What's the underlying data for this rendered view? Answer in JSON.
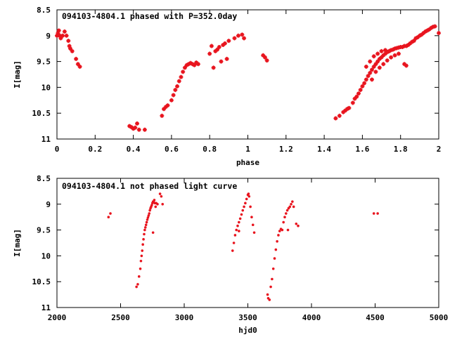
{
  "chart_data": [
    {
      "type": "scatter",
      "title": "094103-4804.1 phased with P=352.0day",
      "xlabel": "phase",
      "ylabel": "I[mag]",
      "xlim": [
        0,
        2
      ],
      "ylim": [
        8.5,
        11
      ],
      "y_inverted": true,
      "x_ticks": [
        "0",
        "0.2",
        "0.4",
        "0.6",
        "0.8",
        "1",
        "1.2",
        "1.4",
        "1.6",
        "1.8",
        "2"
      ],
      "y_ticks": [
        "8.5",
        "9",
        "9.5",
        "10",
        "10.5",
        "11"
      ],
      "grid": false,
      "marker_color": "#e8141e",
      "series": [
        {
          "x": [
            0.0,
            0.005,
            0.01,
            0.015,
            0.02,
            0.03,
            0.04,
            0.05,
            0.06,
            0.065,
            0.07,
            0.08,
            0.1,
            0.11,
            0.12,
            0.38,
            0.39,
            0.4,
            0.41,
            0.42,
            0.43,
            0.46,
            0.55,
            0.56,
            0.57,
            0.58,
            0.6,
            0.61,
            0.62,
            0.63,
            0.64,
            0.65,
            0.66,
            0.67,
            0.68,
            0.69,
            0.7,
            0.71,
            0.72,
            0.73,
            0.74,
            0.8,
            0.81,
            0.82,
            0.83,
            0.84,
            0.85,
            0.86,
            0.87,
            0.88,
            0.89,
            0.9,
            0.93,
            0.95,
            0.97,
            0.98,
            1.08,
            1.09,
            1.1
          ],
          "y": [
            9.0,
            8.95,
            8.9,
            9.0,
            9.05,
            9.0,
            8.92,
            9.0,
            9.1,
            9.2,
            9.25,
            9.3,
            9.45,
            9.55,
            9.6,
            10.75,
            10.77,
            10.8,
            10.78,
            10.7,
            10.82,
            10.82,
            10.55,
            10.42,
            10.38,
            10.35,
            10.25,
            10.15,
            10.05,
            9.98,
            9.88,
            9.8,
            9.7,
            9.62,
            9.57,
            9.55,
            9.53,
            9.55,
            9.57,
            9.52,
            9.55,
            9.35,
            9.2,
            9.62,
            9.3,
            9.27,
            9.22,
            9.5,
            9.18,
            9.15,
            9.45,
            9.1,
            9.05,
            9.0,
            8.98,
            9.05,
            9.38,
            9.42,
            9.48
          ]
        },
        {
          "x": [
            1.46,
            1.48,
            1.5,
            1.51,
            1.52,
            1.53,
            1.55,
            1.56,
            1.57,
            1.58,
            1.59,
            1.6,
            1.61,
            1.62,
            1.63,
            1.64,
            1.65,
            1.66,
            1.67,
            1.68,
            1.69,
            1.7,
            1.71,
            1.72,
            1.73,
            1.74,
            1.75,
            1.76,
            1.77,
            1.78,
            1.79,
            1.8,
            1.81,
            1.82,
            1.83,
            1.84,
            1.85,
            1.86,
            1.87,
            1.88,
            1.89,
            1.9,
            1.91,
            1.92,
            1.93,
            1.94,
            1.95,
            1.96,
            1.97,
            1.98,
            2.0,
            1.62,
            1.64,
            1.66,
            1.68,
            1.7,
            1.72,
            1.74,
            1.65,
            1.67,
            1.69,
            1.71,
            1.73,
            1.75,
            1.77,
            1.79,
            1.82,
            1.83
          ],
          "y": [
            10.6,
            10.55,
            10.48,
            10.45,
            10.42,
            10.4,
            10.3,
            10.22,
            10.18,
            10.12,
            10.05,
            9.98,
            9.92,
            9.85,
            9.78,
            9.72,
            9.66,
            9.6,
            9.55,
            9.5,
            9.45,
            9.42,
            9.38,
            9.35,
            9.32,
            9.3,
            9.28,
            9.27,
            9.25,
            9.24,
            9.23,
            9.22,
            9.22,
            9.2,
            9.2,
            9.18,
            9.15,
            9.12,
            9.1,
            9.05,
            9.03,
            9.0,
            8.98,
            8.95,
            8.92,
            8.9,
            8.88,
            8.85,
            8.83,
            8.82,
            8.95,
            9.6,
            9.5,
            9.4,
            9.35,
            9.3,
            9.28,
            9.3,
            9.85,
            9.7,
            9.62,
            9.55,
            9.48,
            9.42,
            9.38,
            9.35,
            9.55,
            9.58
          ]
        }
      ]
    },
    {
      "type": "scatter",
      "title": "094103-4804.1 not phased light curve",
      "xlabel": "hjd0",
      "ylabel": "I[mag]",
      "xlim": [
        2000,
        5000
      ],
      "ylim": [
        8.5,
        11
      ],
      "y_inverted": true,
      "x_ticks": [
        "2000",
        "2500",
        "3000",
        "3500",
        "4000",
        "4500",
        "5000"
      ],
      "y_ticks": [
        "8.5",
        "9",
        "9.5",
        "10",
        "10.5",
        "11"
      ],
      "grid": false,
      "marker_color": "#e8141e",
      "series": [
        {
          "x": [
            2405,
            2420,
            2625,
            2635,
            2645,
            2655,
            2660,
            2665,
            2670,
            2675,
            2680,
            2685,
            2690,
            2695,
            2700,
            2705,
            2710,
            2715,
            2720,
            2725,
            2730,
            2735,
            2740,
            2745,
            2750,
            2755,
            2760,
            2765,
            2770,
            2775,
            2780,
            2790,
            2810,
            2820,
            2830,
            2755,
            3380,
            3390,
            3400,
            3410,
            3420,
            3430,
            3440,
            3450,
            3460,
            3470,
            3480,
            3490,
            3500,
            3505,
            3510,
            3520,
            3530,
            3540,
            3550,
            3430,
            3655,
            3660,
            3670,
            3680,
            3690,
            3700,
            3710,
            3720,
            3730,
            3740,
            3750,
            3760,
            3770,
            3780,
            3790,
            3800,
            3810,
            3820,
            3830,
            3840,
            3850,
            3860,
            3880,
            3895,
            3815,
            4490,
            4520
          ],
          "y": [
            9.25,
            9.18,
            10.6,
            10.55,
            10.4,
            10.25,
            10.1,
            10.0,
            9.9,
            9.78,
            9.68,
            9.58,
            9.5,
            9.45,
            9.4,
            9.35,
            9.3,
            9.26,
            9.22,
            9.18,
            9.12,
            9.08,
            9.05,
            9.02,
            8.98,
            8.95,
            8.96,
            8.92,
            8.98,
            9.05,
            8.98,
            9.0,
            8.8,
            8.85,
            9.0,
            9.55,
            9.9,
            9.75,
            9.6,
            9.5,
            9.42,
            9.35,
            9.28,
            9.2,
            9.12,
            9.05,
            8.98,
            8.9,
            8.82,
            8.8,
            8.85,
            9.05,
            9.25,
            9.4,
            9.55,
            9.52,
            10.75,
            10.82,
            10.85,
            10.6,
            10.45,
            10.25,
            10.05,
            9.88,
            9.72,
            9.6,
            9.52,
            9.48,
            9.5,
            9.35,
            9.25,
            9.18,
            9.12,
            9.08,
            9.05,
            9.0,
            8.95,
            9.05,
            9.38,
            9.42,
            9.5,
            9.18,
            9.18
          ]
        }
      ]
    }
  ]
}
